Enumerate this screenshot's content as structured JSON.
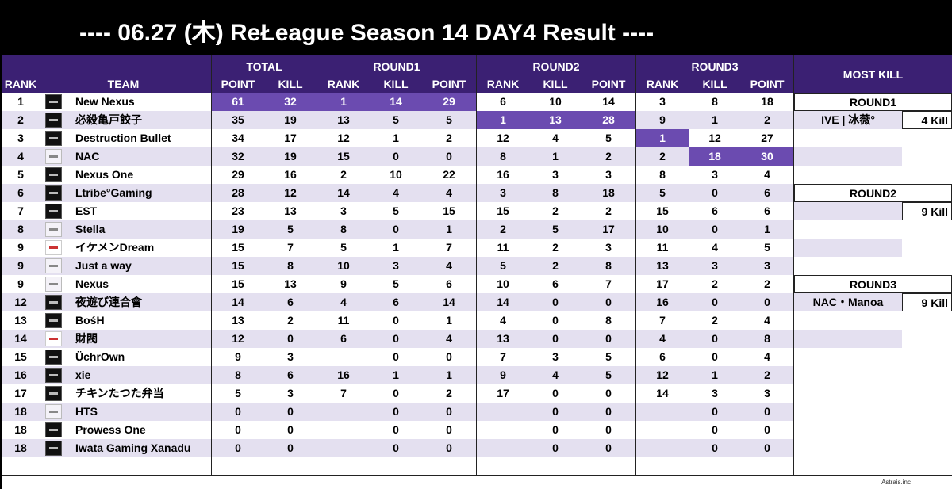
{
  "title": "---- 06.27 (木) ReŁeague Season 14 DAY4 Result ----",
  "headers": {
    "rank": "RANK",
    "team": "TEAM",
    "total": "TOTAL",
    "round1": "ROUND1",
    "round2": "ROUND2",
    "round3": "ROUND3",
    "most_kill": "MOST KILL",
    "point": "POINT",
    "kill": "KILL",
    "sub_rank": "RANK"
  },
  "rows": [
    {
      "rank": "1",
      "team": "New Nexus",
      "tp": "61",
      "tk": "32",
      "r1r": "1",
      "r1k": "14",
      "r1p": "29",
      "r2r": "6",
      "r2k": "10",
      "r2p": "14",
      "r3r": "3",
      "r3k": "8",
      "r3p": "18"
    },
    {
      "rank": "2",
      "team": "必殺亀戸餃子",
      "tp": "35",
      "tk": "19",
      "r1r": "13",
      "r1k": "5",
      "r1p": "5",
      "r2r": "1",
      "r2k": "13",
      "r2p": "28",
      "r3r": "9",
      "r3k": "1",
      "r3p": "2"
    },
    {
      "rank": "3",
      "team": "Destruction Bullet",
      "tp": "34",
      "tk": "17",
      "r1r": "12",
      "r1k": "1",
      "r1p": "2",
      "r2r": "12",
      "r2k": "4",
      "r2p": "5",
      "r3r": "1",
      "r3k": "12",
      "r3p": "27"
    },
    {
      "rank": "4",
      "team": "NAC",
      "tp": "32",
      "tk": "19",
      "r1r": "15",
      "r1k": "0",
      "r1p": "0",
      "r2r": "8",
      "r2k": "1",
      "r2p": "2",
      "r3r": "2",
      "r3k": "18",
      "r3p": "30"
    },
    {
      "rank": "5",
      "team": "Nexus One",
      "tp": "29",
      "tk": "16",
      "r1r": "2",
      "r1k": "10",
      "r1p": "22",
      "r2r": "16",
      "r2k": "3",
      "r2p": "3",
      "r3r": "8",
      "r3k": "3",
      "r3p": "4"
    },
    {
      "rank": "6",
      "team": "Ltribe°Gaming",
      "tp": "28",
      "tk": "12",
      "r1r": "14",
      "r1k": "4",
      "r1p": "4",
      "r2r": "3",
      "r2k": "8",
      "r2p": "18",
      "r3r": "5",
      "r3k": "0",
      "r3p": "6"
    },
    {
      "rank": "7",
      "team": "EST",
      "tp": "23",
      "tk": "13",
      "r1r": "3",
      "r1k": "5",
      "r1p": "15",
      "r2r": "15",
      "r2k": "2",
      "r2p": "2",
      "r3r": "15",
      "r3k": "6",
      "r3p": "6"
    },
    {
      "rank": "8",
      "team": "Stella",
      "tp": "19",
      "tk": "5",
      "r1r": "8",
      "r1k": "0",
      "r1p": "1",
      "r2r": "2",
      "r2k": "5",
      "r2p": "17",
      "r3r": "10",
      "r3k": "0",
      "r3p": "1"
    },
    {
      "rank": "9",
      "team": "イケメンDream",
      "tp": "15",
      "tk": "7",
      "r1r": "5",
      "r1k": "1",
      "r1p": "7",
      "r2r": "11",
      "r2k": "2",
      "r2p": "3",
      "r3r": "11",
      "r3k": "4",
      "r3p": "5"
    },
    {
      "rank": "9",
      "team": "Just a way",
      "tp": "15",
      "tk": "8",
      "r1r": "10",
      "r1k": "3",
      "r1p": "4",
      "r2r": "5",
      "r2k": "2",
      "r2p": "8",
      "r3r": "13",
      "r3k": "3",
      "r3p": "3"
    },
    {
      "rank": "9",
      "team": "Nexus",
      "tp": "15",
      "tk": "13",
      "r1r": "9",
      "r1k": "5",
      "r1p": "6",
      "r2r": "10",
      "r2k": "6",
      "r2p": "7",
      "r3r": "17",
      "r3k": "2",
      "r3p": "2"
    },
    {
      "rank": "12",
      "team": "夜遊び連合會",
      "tp": "14",
      "tk": "6",
      "r1r": "4",
      "r1k": "6",
      "r1p": "14",
      "r2r": "14",
      "r2k": "0",
      "r2p": "0",
      "r3r": "16",
      "r3k": "0",
      "r3p": "0"
    },
    {
      "rank": "13",
      "team": "BośH",
      "tp": "13",
      "tk": "2",
      "r1r": "11",
      "r1k": "0",
      "r1p": "1",
      "r2r": "4",
      "r2k": "0",
      "r2p": "8",
      "r3r": "7",
      "r3k": "2",
      "r3p": "4"
    },
    {
      "rank": "14",
      "team": "財閥",
      "tp": "12",
      "tk": "0",
      "r1r": "6",
      "r1k": "0",
      "r1p": "4",
      "r2r": "13",
      "r2k": "0",
      "r2p": "0",
      "r3r": "4",
      "r3k": "0",
      "r3p": "8"
    },
    {
      "rank": "15",
      "team": "ÜchrOwn",
      "tp": "9",
      "tk": "3",
      "r1r": "",
      "r1k": "0",
      "r1p": "0",
      "r2r": "7",
      "r2k": "3",
      "r2p": "5",
      "r3r": "6",
      "r3k": "0",
      "r3p": "4"
    },
    {
      "rank": "16",
      "team": "xie",
      "tp": "8",
      "tk": "6",
      "r1r": "16",
      "r1k": "1",
      "r1p": "1",
      "r2r": "9",
      "r2k": "4",
      "r2p": "5",
      "r3r": "12",
      "r3k": "1",
      "r3p": "2"
    },
    {
      "rank": "17",
      "team": "チキンたつた弁当",
      "tp": "5",
      "tk": "3",
      "r1r": "7",
      "r1k": "0",
      "r1p": "2",
      "r2r": "17",
      "r2k": "0",
      "r2p": "0",
      "r3r": "14",
      "r3k": "3",
      "r3p": "3"
    },
    {
      "rank": "18",
      "team": "HTS",
      "tp": "0",
      "tk": "0",
      "r1r": "",
      "r1k": "0",
      "r1p": "0",
      "r2r": "",
      "r2k": "0",
      "r2p": "0",
      "r3r": "",
      "r3k": "0",
      "r3p": "0"
    },
    {
      "rank": "18",
      "team": "Prowess One",
      "tp": "0",
      "tk": "0",
      "r1r": "",
      "r1k": "0",
      "r1p": "0",
      "r2r": "",
      "r2k": "0",
      "r2p": "0",
      "r3r": "",
      "r3k": "0",
      "r3p": "0"
    },
    {
      "rank": "18",
      "team": "Iwata Gaming Xanadu",
      "tp": "0",
      "tk": "0",
      "r1r": "",
      "r1k": "0",
      "r1p": "0",
      "r2r": "",
      "r2k": "0",
      "r2p": "0",
      "r3r": "",
      "r3k": "0",
      "r3p": "0"
    }
  ],
  "most_kill": {
    "round1": {
      "label": "ROUND1",
      "name": "IVE | 冰薇°",
      "kill": "4 Kill"
    },
    "round2": {
      "label": "ROUND2",
      "name": "",
      "kill": "9 Kill"
    },
    "round3": {
      "label": "ROUND3",
      "name": "NAC・Manoa",
      "kill": "9 Kill"
    }
  },
  "credit": "Astrais.inc",
  "colors": {
    "header_bg": "#3b2073",
    "highlight": "#6b4bb0",
    "alt_row": "#e4e0f0"
  }
}
